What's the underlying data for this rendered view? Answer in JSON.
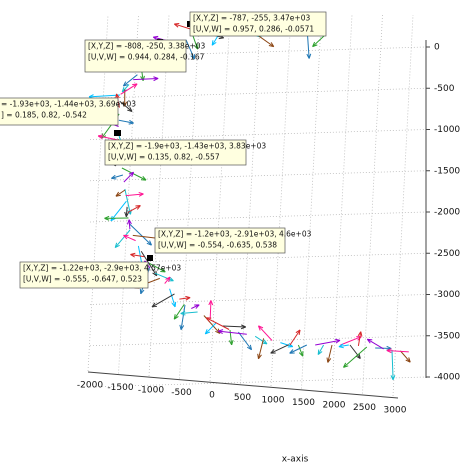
{
  "chart_data": {
    "type": "quiver3",
    "xlabel": "x-axis",
    "xticks": [
      -2000,
      -1500,
      -1000,
      -500,
      0,
      500,
      1000,
      1500,
      2000,
      2500,
      3000
    ],
    "zticks": [
      0,
      -500,
      -1000,
      -1500,
      -2000,
      -2500,
      -3000,
      -3500,
      -4000
    ],
    "grid": true,
    "datatips": [
      {
        "lines": [
          "[X,Y,Z] = -787,  -255,  3.47e+03",
          "[U,V,W] = 0.957,  0.286,  -0.0571"
        ]
      },
      {
        "lines": [
          "[X,Y,Z] = -808,  -250,  3.38e+03",
          "[U,V,W] = 0.944,  0.284,  -0.167"
        ]
      },
      {
        "lines": [
          "= -1.93e+03,  -1.44e+03,  3.69e+03",
          "] = 0.185,  0.82,  -0.542"
        ]
      },
      {
        "lines": [
          "[X,Y,Z] = -1.9e+03,  -1.43e+03,  3.83e+03",
          "[U,V,W] = 0.135,  0.82,  -0.557"
        ]
      },
      {
        "lines": [
          "[X,Y,Z] = -1.2e+03,  -2.91e+03,  4.6e+03",
          "[U,V,W] = -0.554,  -0.635,  0.538"
        ]
      },
      {
        "lines": [
          "[X,Y,Z] = -1.22e+03,  -2.9e+03,  4.57e+03",
          "[U,V,W] = -0.555,  -0.647,  0.523"
        ]
      }
    ]
  }
}
